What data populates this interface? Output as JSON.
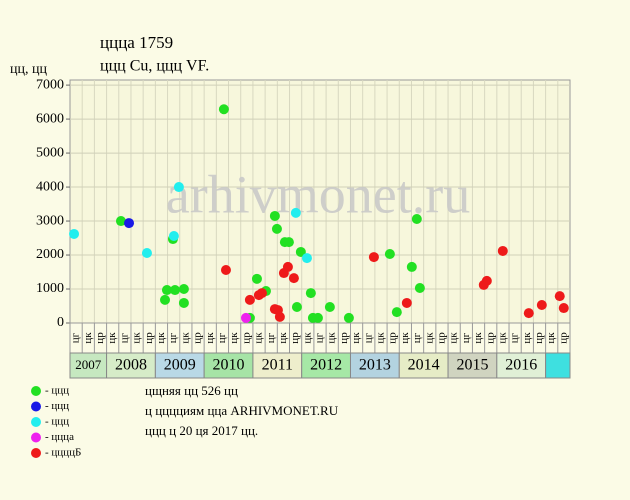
{
  "chart_data": {
    "type": "scatter",
    "title": "ццца 1759",
    "subtitle": "ццц Cu, ццц VF.",
    "ylabel": "цц, цц",
    "watermark": "arhivmonet.ru",
    "notes": [
      "цщняя цц 526 цц",
      "ц цццциям цца ARHIVMONET.RU",
      "ццц ц 20 ця 2017 цц."
    ],
    "categories": [
      "цг",
      "цк",
      "цр",
      "цк",
      "цг",
      "цк",
      "цр",
      "цк",
      "цг",
      "цк",
      "цр",
      "цк",
      "цг",
      "цк",
      "цр",
      "цк",
      "цг",
      "цк",
      "цр",
      "цк",
      "цг",
      "цк",
      "цр",
      "цк",
      "цг",
      "цк",
      "цр",
      "цк",
      "цг",
      "цк",
      "цр",
      "цк",
      "цг",
      "цк",
      "цр",
      "цк",
      "цг",
      "цк",
      "цр",
      "цк",
      "цр"
    ],
    "years": [
      {
        "label": "2007",
        "color": "#c6e8c0"
      },
      {
        "label": "2008",
        "color": "#d6ecc8"
      },
      {
        "label": "2009",
        "color": "#b9d9e6"
      },
      {
        "label": "2010",
        "color": "#a6e4a6"
      },
      {
        "label": "2011",
        "color": "#eeeecc"
      },
      {
        "label": "2012",
        "color": "#a6e8a6"
      },
      {
        "label": "2013",
        "color": "#b3d3e0"
      },
      {
        "label": "2014",
        "color": "#e6ecc6"
      },
      {
        "label": "2015",
        "color": "#d0d4c0"
      },
      {
        "label": "2016",
        "color": "#e0f0d6"
      },
      {
        "label": null,
        "color": "#3ee0e0"
      }
    ],
    "xlim": [
      0,
      41
    ],
    "ylim": [
      0,
      7150
    ],
    "yticks": [
      0,
      1000,
      2000,
      3000,
      4000,
      5000,
      6000,
      7000
    ],
    "grid": true,
    "series": [
      {
        "name": "- ццц",
        "color": "#22e022",
        "x": [
          7.79,
          7.95,
          8.61,
          9.34,
          9.34,
          8.44,
          4.18,
          14.75,
          15.33,
          16.07,
          16.8,
          16.97,
          17.62,
          17.95,
          18.61,
          18.93,
          19.75,
          19.92,
          20.33,
          21.31,
          22.87,
          12.62,
          26.23,
          26.8,
          28.03,
          28.44,
          28.69
        ],
        "values": [
          680,
          970,
          970,
          1000,
          590,
          2470,
          3000,
          150,
          1300,
          940,
          3150,
          2770,
          2380,
          2380,
          470,
          2090,
          880,
          150,
          150,
          470,
          150,
          6290,
          2030,
          320,
          1650,
          3060,
          1030
        ]
      },
      {
        "name": "- ццц",
        "color": "#1a1ae6",
        "x": [
          4.84
        ],
        "values": [
          2940
        ]
      },
      {
        "name": "- ццц",
        "color": "#22eeee",
        "x": [
          0.33,
          6.31,
          8.52,
          8.93,
          18.52,
          19.43
        ],
        "values": [
          2620,
          2060,
          2560,
          4000,
          3240,
          1910
        ]
      },
      {
        "name": "- цццa",
        "color": "#ee22ee",
        "x": [
          14.43
        ],
        "values": [
          150
        ]
      },
      {
        "name": "- ццццБ",
        "color": "#ee1a1a",
        "x": [
          12.79,
          14.75,
          15.49,
          15.74,
          16.8,
          17.05,
          17.21,
          17.54,
          17.87,
          18.36,
          24.92,
          27.62,
          33.93,
          34.18,
          35.49,
          37.62,
          38.69,
          40.16,
          40.49
        ],
        "values": [
          1560,
          680,
          820,
          880,
          410,
          380,
          180,
          1470,
          1650,
          1320,
          1940,
          590,
          1120,
          1240,
          2120,
          290,
          530,
          790,
          440
        ]
      }
    ]
  }
}
